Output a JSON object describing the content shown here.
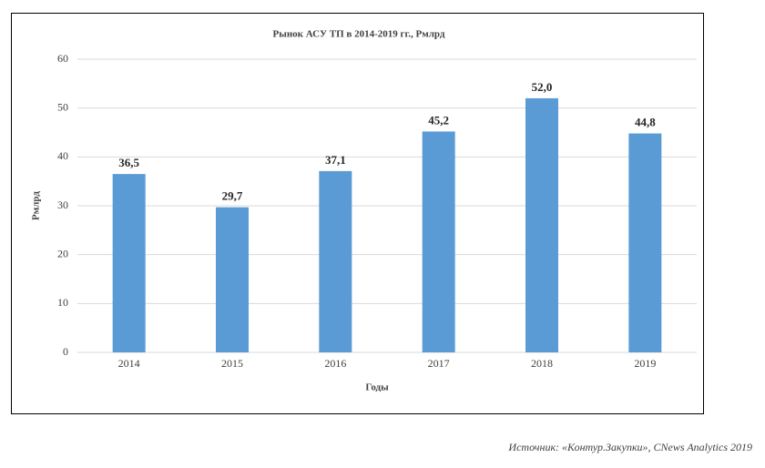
{
  "chart_data": {
    "type": "bar",
    "title": "Рынок АСУ ТП в 2014-2019 гг., Рмлрд",
    "categories": [
      "2014",
      "2015",
      "2016",
      "2017",
      "2018",
      "2019"
    ],
    "values": [
      36.5,
      29.7,
      37.1,
      45.2,
      52.0,
      44.8
    ],
    "value_labels": [
      "36,5",
      "29,7",
      "37,1",
      "45,2",
      "52,0",
      "44,8"
    ],
    "color": "#5b9bd5",
    "xlabel": "Годы",
    "ylabel": "Рмлрд",
    "ylim": [
      0,
      60
    ],
    "yticks": [
      0,
      10,
      20,
      30,
      40,
      50,
      60
    ],
    "grid": true
  },
  "caption": "Источник: «Контур.Закупки», CNews Analytics 2019"
}
